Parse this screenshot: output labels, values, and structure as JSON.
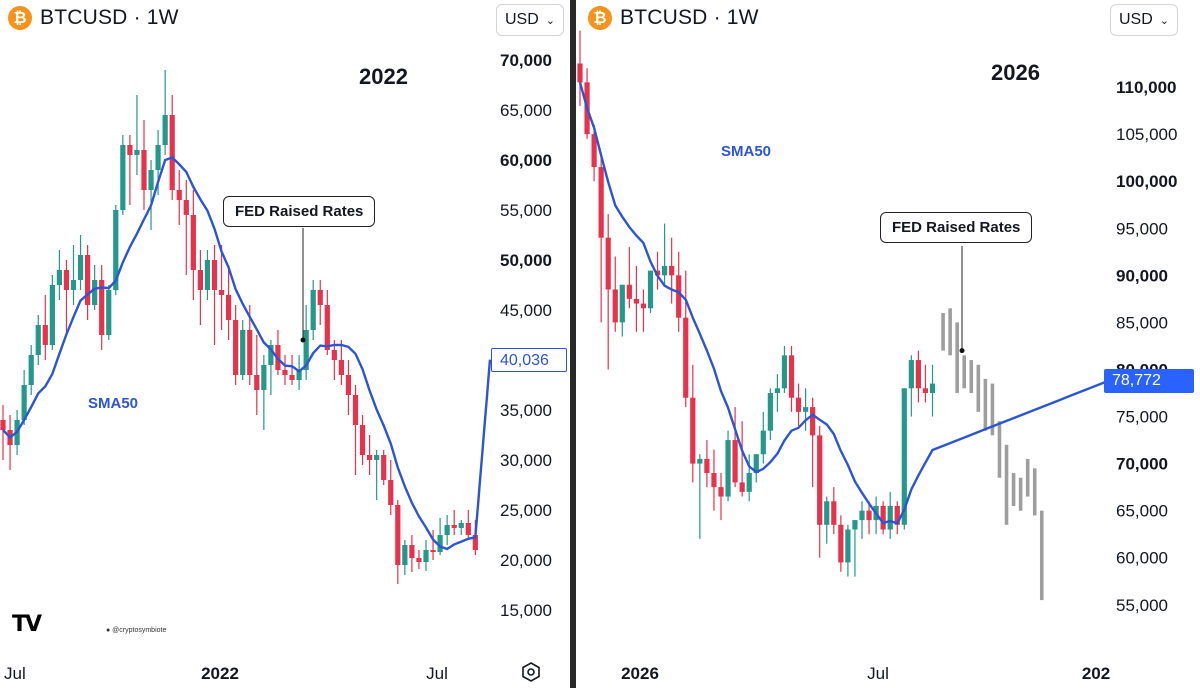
{
  "colors": {
    "up": "#22998a",
    "down": "#e8314a",
    "projection": "#9e9e9e",
    "sma": "#2c55d4",
    "price_tag_blue": "#2962ff"
  },
  "chart_data": [
    {
      "type": "candlestick",
      "symbol": "BTCUSD · 1W",
      "currency": "USD",
      "year_label": "2022",
      "y_ticks": [
        "70,000",
        "65,000",
        "60,000",
        "55,000",
        "50,000",
        "45,000",
        "40,000",
        "35,000",
        "30,000",
        "25,000",
        "20,000",
        "15,000"
      ],
      "x_ticks": [
        "Jul",
        "2022",
        "Jul"
      ],
      "ylim": [
        11000,
        72000
      ],
      "sma": {
        "label": "SMA50",
        "last_value": "40,036"
      },
      "annotation": {
        "text": "FED Raised Rates",
        "anchor_index": 43,
        "anchor_price": 42000
      },
      "candles": [
        [
          34000,
          35500,
          30000,
          33000
        ],
        [
          33000,
          34500,
          29000,
          31500
        ],
        [
          31500,
          35000,
          30500,
          34000
        ],
        [
          34000,
          39000,
          33500,
          37500
        ],
        [
          37500,
          41500,
          36500,
          40500
        ],
        [
          40500,
          44500,
          39500,
          43500
        ],
        [
          43500,
          46500,
          40000,
          41500
        ],
        [
          41500,
          48500,
          41000,
          47500
        ],
        [
          47500,
          51000,
          46000,
          49000
        ],
        [
          49000,
          50000,
          42500,
          47000
        ],
        [
          47000,
          51500,
          45500,
          48000
        ],
        [
          48000,
          52500,
          47000,
          50500
        ],
        [
          50500,
          51500,
          44000,
          45500
        ],
        [
          45500,
          49500,
          45000,
          48000
        ],
        [
          48000,
          49500,
          41000,
          42500
        ],
        [
          42500,
          47500,
          42000,
          47000
        ],
        [
          47000,
          55500,
          46500,
          55000
        ],
        [
          55000,
          62500,
          54500,
          61500
        ],
        [
          61500,
          62500,
          55500,
          60500
        ],
        [
          60500,
          66500,
          58500,
          61000
        ],
        [
          61000,
          64000,
          55000,
          57000
        ],
        [
          57000,
          60000,
          53000,
          59000
        ],
        [
          59000,
          63000,
          56500,
          61500
        ],
        [
          61500,
          69000,
          60500,
          64500
        ],
        [
          64500,
          66500,
          56000,
          57000
        ],
        [
          57000,
          59000,
          53500,
          56000
        ],
        [
          56000,
          58000,
          48500,
          54500
        ],
        [
          54500,
          57000,
          46000,
          49000
        ],
        [
          49000,
          51000,
          43500,
          47000
        ],
        [
          47000,
          51000,
          46000,
          50000
        ],
        [
          50000,
          51500,
          41500,
          47000
        ],
        [
          47000,
          51500,
          43000,
          46500
        ],
        [
          46500,
          49500,
          42000,
          44000
        ],
        [
          44000,
          45500,
          37500,
          38500
        ],
        [
          38500,
          44000,
          38000,
          43000
        ],
        [
          43000,
          45500,
          37500,
          38500
        ],
        [
          38500,
          42500,
          34500,
          37000
        ],
        [
          37000,
          40500,
          33000,
          39500
        ],
        [
          39500,
          42000,
          36500,
          41500
        ],
        [
          41500,
          43000,
          38500,
          39000
        ],
        [
          39000,
          40500,
          37500,
          38500
        ],
        [
          38500,
          40500,
          37500,
          38000
        ],
        [
          38000,
          40500,
          37000,
          39000
        ],
        [
          39000,
          45500,
          38000,
          43000
        ],
        [
          43000,
          48000,
          42000,
          47000
        ],
        [
          47000,
          48000,
          43500,
          45500
        ],
        [
          45500,
          47000,
          40500,
          41000
        ],
        [
          41000,
          42000,
          38000,
          40000
        ],
        [
          40000,
          42000,
          37500,
          38500
        ],
        [
          38500,
          40000,
          34500,
          36500
        ],
        [
          36500,
          37500,
          28500,
          33500
        ],
        [
          33500,
          34500,
          29500,
          30500
        ],
        [
          30500,
          32500,
          28500,
          30000
        ],
        [
          30000,
          31000,
          26000,
          30500
        ],
        [
          30500,
          31000,
          27500,
          28000
        ],
        [
          28000,
          30000,
          24500,
          25500
        ],
        [
          25500,
          26000,
          17600,
          19500
        ],
        [
          19500,
          22000,
          18500,
          21500
        ],
        [
          21500,
          22500,
          18800,
          20200
        ],
        [
          20200,
          21000,
          19100,
          19800
        ],
        [
          19800,
          22000,
          18900,
          21000
        ],
        [
          21000,
          23000,
          20000,
          20800
        ],
        [
          20800,
          24200,
          20500,
          22500
        ],
        [
          22500,
          24500,
          21500,
          23500
        ],
        [
          23500,
          25000,
          22500,
          23200
        ],
        [
          23200,
          24000,
          22500,
          23700
        ],
        [
          23700,
          25000,
          22000,
          22500
        ],
        [
          22500,
          24000,
          20500,
          21000
        ]
      ]
    },
    {
      "type": "candlestick",
      "symbol": "BTCUSD · 1W",
      "currency": "USD",
      "year_label": "2026",
      "y_ticks": [
        "110,000",
        "105,000",
        "100,000",
        "95,000",
        "90,000",
        "85,000",
        "80,000",
        "75,000",
        "70,000",
        "65,000",
        "60,000",
        "55,000"
      ],
      "x_ticks": [
        "2026",
        "Jul",
        "202"
      ],
      "ylim": [
        50200,
        115000
      ],
      "sma": {
        "label": "SMA50",
        "last_value": "78,772"
      },
      "annotation": {
        "text": "FED Raised Rates",
        "anchor_index": 43,
        "anchor_price": 82000
      },
      "candles": [
        [
          112500,
          116000,
          108000,
          110500
        ],
        [
          110500,
          112000,
          104500,
          105000
        ],
        [
          105000,
          106000,
          100000,
          101500
        ],
        [
          101500,
          103000,
          85000,
          94000
        ],
        [
          94000,
          96500,
          80000,
          88500
        ],
        [
          88500,
          92000,
          84000,
          85000
        ],
        [
          85000,
          89000,
          83500,
          89000
        ],
        [
          89000,
          93000,
          86500,
          87500
        ],
        [
          87500,
          91000,
          84000,
          87000
        ],
        [
          87000,
          88500,
          84000,
          86500
        ],
        [
          86500,
          90500,
          86000,
          90500
        ],
        [
          90500,
          92500,
          88500,
          90000
        ],
        [
          90000,
          95500,
          89000,
          91000
        ],
        [
          91000,
          94000,
          87000,
          90000
        ],
        [
          90000,
          92500,
          84000,
          85500
        ],
        [
          85500,
          90500,
          76000,
          77000
        ],
        [
          77000,
          80500,
          68000,
          70000
        ],
        [
          70000,
          71000,
          62000,
          70500
        ],
        [
          70500,
          72500,
          67500,
          69000
        ],
        [
          69000,
          71500,
          65000,
          67500
        ],
        [
          67500,
          69000,
          64000,
          66500
        ],
        [
          66500,
          73500,
          66000,
          72500
        ],
        [
          72500,
          76000,
          67500,
          68000
        ],
        [
          68000,
          74500,
          66500,
          67000
        ],
        [
          67000,
          71000,
          66000,
          69000
        ],
        [
          69000,
          71000,
          68000,
          71000
        ],
        [
          71000,
          75500,
          70000,
          73500
        ],
        [
          73500,
          78000,
          72500,
          77500
        ],
        [
          77500,
          79500,
          75500,
          78000
        ],
        [
          78000,
          82500,
          77500,
          81500
        ],
        [
          81500,
          82500,
          75500,
          77000
        ],
        [
          77000,
          78500,
          74000,
          75500
        ],
        [
          75500,
          78000,
          73500,
          76000
        ],
        [
          76000,
          77000,
          67500,
          73000
        ],
        [
          73000,
          74000,
          60000,
          63500
        ],
        [
          63500,
          66500,
          61500,
          66000
        ],
        [
          66000,
          67500,
          62500,
          63500
        ],
        [
          63500,
          64500,
          58500,
          59500
        ],
        [
          59500,
          63500,
          58000,
          63000
        ],
        [
          63000,
          64000,
          58000,
          64000
        ],
        [
          64000,
          66000,
          62000,
          65000
        ],
        [
          65000,
          66000,
          62500,
          64000
        ],
        [
          64000,
          66500,
          62500,
          65500
        ],
        [
          65500,
          66000,
          62500,
          63000
        ],
        [
          63000,
          67000,
          62000,
          65500
        ],
        [
          65500,
          66000,
          62500,
          63500
        ],
        [
          63500,
          78000,
          63000,
          78000
        ],
        [
          78000,
          81500,
          75000,
          81000
        ],
        [
          81000,
          82000,
          76500,
          78000
        ],
        [
          78000,
          80500,
          76500,
          77500
        ],
        [
          77500,
          80500,
          75000,
          78500
        ]
      ],
      "projection": [
        [
          82000,
          86000
        ],
        [
          81500,
          86500
        ],
        [
          77500,
          85000
        ],
        [
          78000,
          81500
        ],
        [
          77500,
          81000
        ],
        [
          75500,
          80500
        ],
        [
          73500,
          79000
        ],
        [
          73000,
          78500
        ],
        [
          68500,
          74500
        ],
        [
          63500,
          72000
        ],
        [
          65500,
          69000
        ],
        [
          65000,
          68500
        ],
        [
          66500,
          70500
        ],
        [
          64500,
          69500
        ],
        [
          55500,
          65000
        ]
      ]
    }
  ]
}
